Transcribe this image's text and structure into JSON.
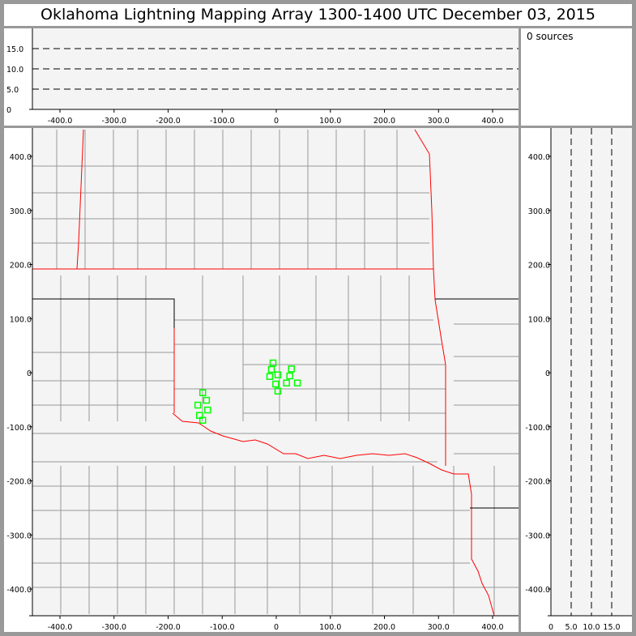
{
  "title": "Oklahoma Lightning Mapping Array   1300-1400 UTC  December 03, 2015",
  "source_count": "0 sources",
  "colors": {
    "state_border": "#ff0000",
    "county_line": "#999999",
    "station": "#00ff00",
    "plot_bg": "#f4f4f4"
  },
  "x_ticks": [
    "-400.0",
    "-300.0",
    "-200.0",
    "-100.0",
    "0",
    "100.0",
    "200.0",
    "300.0",
    "400.0"
  ],
  "x_tick_values": [
    -400,
    -300,
    -200,
    -100,
    0,
    100,
    200,
    300,
    400
  ],
  "y_ticks": [
    "400.0",
    "300.0",
    "200.0",
    "100.0",
    "0",
    "-100.0",
    "-200.0",
    "-300.0",
    "-400.0"
  ],
  "y_tick_values": [
    400,
    300,
    200,
    100,
    0,
    -100,
    -200,
    -300,
    -400
  ],
  "alt_ticks": [
    "0",
    "5.0",
    "10.0",
    "15.0"
  ],
  "alt_tick_values": [
    0,
    5,
    10,
    15
  ],
  "stations_km": [
    [
      -6,
      18
    ],
    [
      -9,
      6
    ],
    [
      -12,
      -7
    ],
    [
      3,
      -4
    ],
    [
      28,
      7
    ],
    [
      25,
      -6
    ],
    [
      -1,
      -21
    ],
    [
      19,
      -19
    ],
    [
      39,
      -19
    ],
    [
      3,
      -34
    ],
    [
      -136,
      -37
    ],
    [
      -129,
      -51
    ],
    [
      -145,
      -60
    ],
    [
      -127,
      -69
    ],
    [
      -142,
      -79
    ],
    [
      -136,
      -88
    ]
  ]
}
